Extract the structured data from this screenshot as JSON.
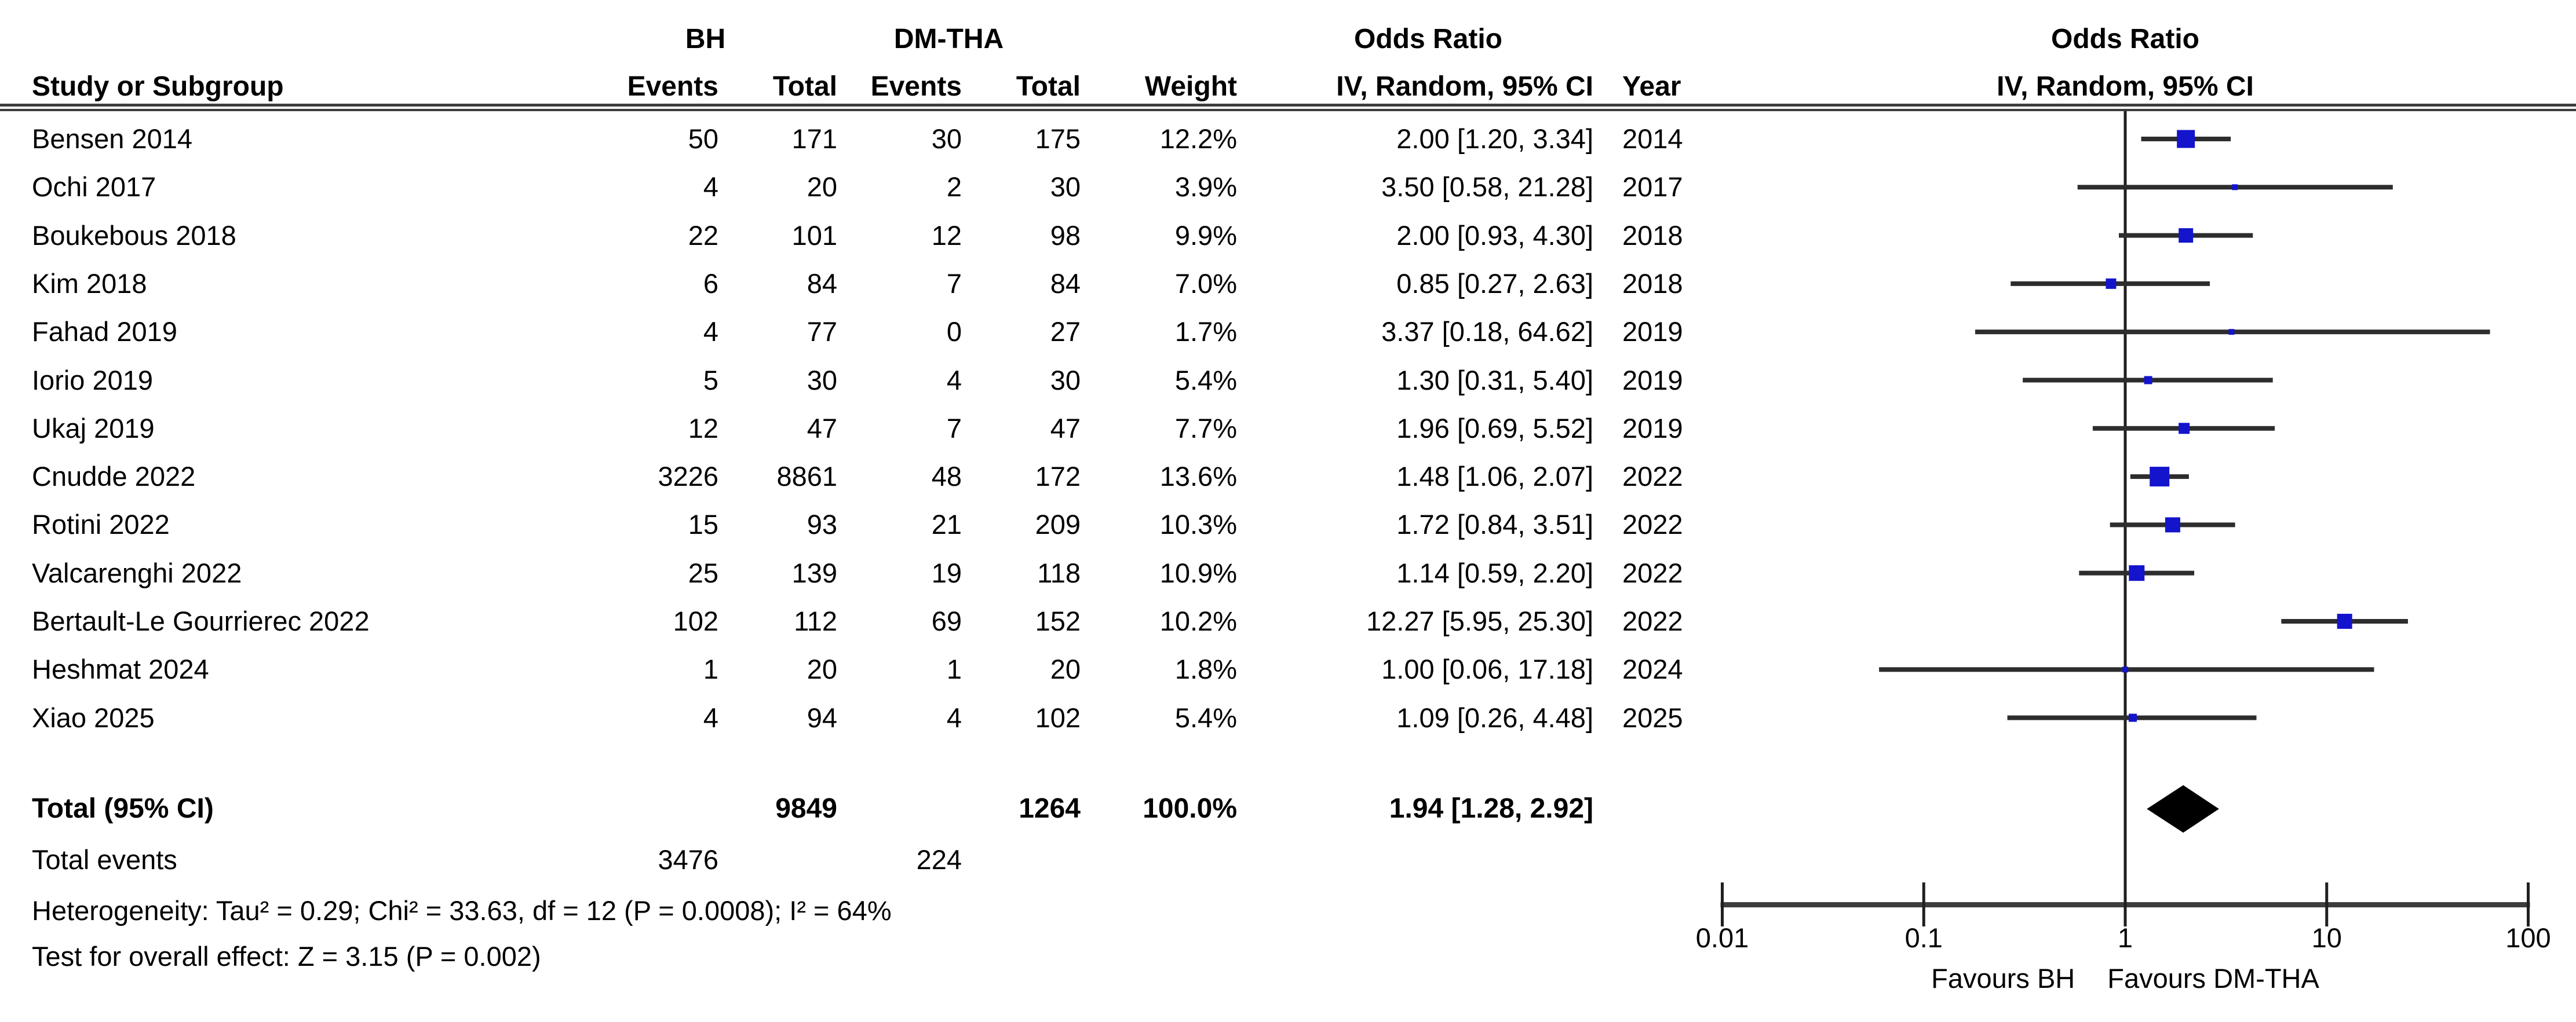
{
  "header": {
    "group1": "BH",
    "group2": "DM-THA",
    "or_col_title": "Odds Ratio",
    "plot_title": "Odds Ratio",
    "study_col": "Study or Subgroup",
    "events_col1": "Events",
    "total_col1": "Total",
    "events_col2": "Events",
    "total_col2": "Total",
    "weight_col": "Weight",
    "method_col": "IV, Random, 95% CI",
    "year_col": "Year",
    "plot_method": "IV, Random, 95% CI"
  },
  "totals": {
    "label": "Total (95% CI)",
    "total1": "9849",
    "total2": "1264",
    "weight": "100.0%",
    "or_ci": "1.94 [1.28, 2.92]",
    "events_label": "Total events",
    "events1": "3476",
    "events2": "224"
  },
  "footer": {
    "heterogeneity": "Heterogeneity: Tau² = 0.29; Chi² = 33.63, df = 12 (P = 0.0008); I² = 64%",
    "overall_effect": "Test for overall effect: Z = 3.15 (P = 0.002)"
  },
  "axis": {
    "ticks": [
      "0.01",
      "0.1",
      "1",
      "10",
      "100"
    ],
    "favours_left": "Favours BH",
    "favours_right": "Favours DM-THA"
  },
  "colors": {
    "marker": "#1414CC",
    "ci_line": "#2d2d2d",
    "axis_line": "#3d3d3d",
    "diamond": "#000000"
  },
  "chart_data": {
    "type": "forest",
    "effect_measure": "Odds Ratio",
    "model": "IV, Random, 95% CI",
    "x_scale": "log10",
    "x_range": [
      0.01,
      100
    ],
    "x_ticks": [
      0.01,
      0.1,
      1,
      10,
      100
    ],
    "studies": [
      {
        "study": "Bensen 2014",
        "events1": "50",
        "total1": "171",
        "events2": "30",
        "total2": "175",
        "weight": 12.2,
        "weight_label": "12.2%",
        "or": 2.0,
        "ci_low": 1.2,
        "ci_high": 3.34,
        "or_ci_label": "2.00 [1.20, 3.34]",
        "year": "2014"
      },
      {
        "study": "Ochi 2017",
        "events1": "4",
        "total1": "20",
        "events2": "2",
        "total2": "30",
        "weight": 3.9,
        "weight_label": "3.9%",
        "or": 3.5,
        "ci_low": 0.58,
        "ci_high": 21.28,
        "or_ci_label": "3.50 [0.58, 21.28]",
        "year": "2017"
      },
      {
        "study": "Boukebous 2018",
        "events1": "22",
        "total1": "101",
        "events2": "12",
        "total2": "98",
        "weight": 9.9,
        "weight_label": "9.9%",
        "or": 2.0,
        "ci_low": 0.93,
        "ci_high": 4.3,
        "or_ci_label": "2.00 [0.93, 4.30]",
        "year": "2018"
      },
      {
        "study": "Kim 2018",
        "events1": "6",
        "total1": "84",
        "events2": "7",
        "total2": "84",
        "weight": 7.0,
        "weight_label": "7.0%",
        "or": 0.85,
        "ci_low": 0.27,
        "ci_high": 2.63,
        "or_ci_label": "0.85 [0.27, 2.63]",
        "year": "2018"
      },
      {
        "study": "Fahad 2019",
        "events1": "4",
        "total1": "77",
        "events2": "0",
        "total2": "27",
        "weight": 1.7,
        "weight_label": "1.7%",
        "or": 3.37,
        "ci_low": 0.18,
        "ci_high": 64.62,
        "or_ci_label": "3.37 [0.18, 64.62]",
        "year": "2019"
      },
      {
        "study": "Iorio 2019",
        "events1": "5",
        "total1": "30",
        "events2": "4",
        "total2": "30",
        "weight": 5.4,
        "weight_label": "5.4%",
        "or": 1.3,
        "ci_low": 0.31,
        "ci_high": 5.4,
        "or_ci_label": "1.30 [0.31, 5.40]",
        "year": "2019"
      },
      {
        "study": "Ukaj 2019",
        "events1": "12",
        "total1": "47",
        "events2": "7",
        "total2": "47",
        "weight": 7.7,
        "weight_label": "7.7%",
        "or": 1.96,
        "ci_low": 0.69,
        "ci_high": 5.52,
        "or_ci_label": "1.96 [0.69, 5.52]",
        "year": "2019"
      },
      {
        "study": "Cnudde 2022",
        "events1": "3226",
        "total1": "8861",
        "events2": "48",
        "total2": "172",
        "weight": 13.6,
        "weight_label": "13.6%",
        "or": 1.48,
        "ci_low": 1.06,
        "ci_high": 2.07,
        "or_ci_label": "1.48 [1.06, 2.07]",
        "year": "2022"
      },
      {
        "study": "Rotini 2022",
        "events1": "15",
        "total1": "93",
        "events2": "21",
        "total2": "209",
        "weight": 10.3,
        "weight_label": "10.3%",
        "or": 1.72,
        "ci_low": 0.84,
        "ci_high": 3.51,
        "or_ci_label": "1.72 [0.84, 3.51]",
        "year": "2022"
      },
      {
        "study": "Valcarenghi 2022",
        "events1": "25",
        "total1": "139",
        "events2": "19",
        "total2": "118",
        "weight": 10.9,
        "weight_label": "10.9%",
        "or": 1.14,
        "ci_low": 0.59,
        "ci_high": 2.2,
        "or_ci_label": "1.14 [0.59, 2.20]",
        "year": "2022"
      },
      {
        "study": "Bertault-Le Gourrierec 2022",
        "events1": "102",
        "total1": "112",
        "events2": "69",
        "total2": "152",
        "weight": 10.2,
        "weight_label": "10.2%",
        "or": 12.27,
        "ci_low": 5.95,
        "ci_high": 25.3,
        "or_ci_label": "12.27 [5.95, 25.30]",
        "year": "2022"
      },
      {
        "study": "Heshmat 2024",
        "events1": "1",
        "total1": "20",
        "events2": "1",
        "total2": "20",
        "weight": 1.8,
        "weight_label": "1.8%",
        "or": 1.0,
        "ci_low": 0.06,
        "ci_high": 17.18,
        "or_ci_label": "1.00 [0.06, 17.18]",
        "year": "2024"
      },
      {
        "study": "Xiao 2025",
        "events1": "4",
        "total1": "94",
        "events2": "4",
        "total2": "102",
        "weight": 5.4,
        "weight_label": "5.4%",
        "or": 1.09,
        "ci_low": 0.26,
        "ci_high": 4.48,
        "or_ci_label": "1.09 [0.26, 4.48]",
        "year": "2025"
      }
    ],
    "total": {
      "or": 1.94,
      "ci_low": 1.28,
      "ci_high": 2.92
    }
  }
}
